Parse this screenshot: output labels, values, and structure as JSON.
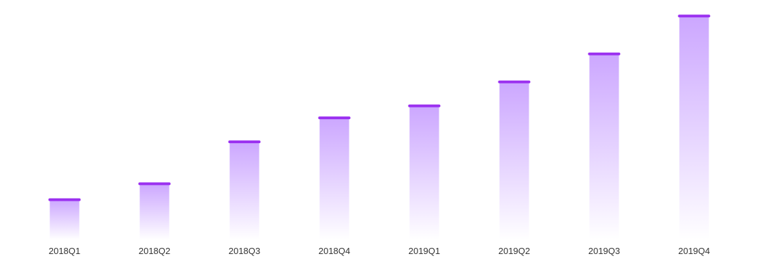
{
  "chart_data": {
    "type": "bar",
    "categories": [
      "2018Q1",
      "2018Q2",
      "2018Q3",
      "2018Q4",
      "2019Q1",
      "2019Q2",
      "2019Q3",
      "2019Q4"
    ],
    "values": [
      20,
      28,
      49,
      61,
      67,
      79,
      93,
      112
    ],
    "ylim": [
      0,
      120
    ],
    "grid": false,
    "legend": "none",
    "title": "",
    "xlabel": "",
    "ylabel": "",
    "colors": {
      "bar_top": "#c9a2ff",
      "bar_bottom": "#ffffff",
      "cap": "#9b30f0",
      "tick_text": "#333333"
    }
  }
}
